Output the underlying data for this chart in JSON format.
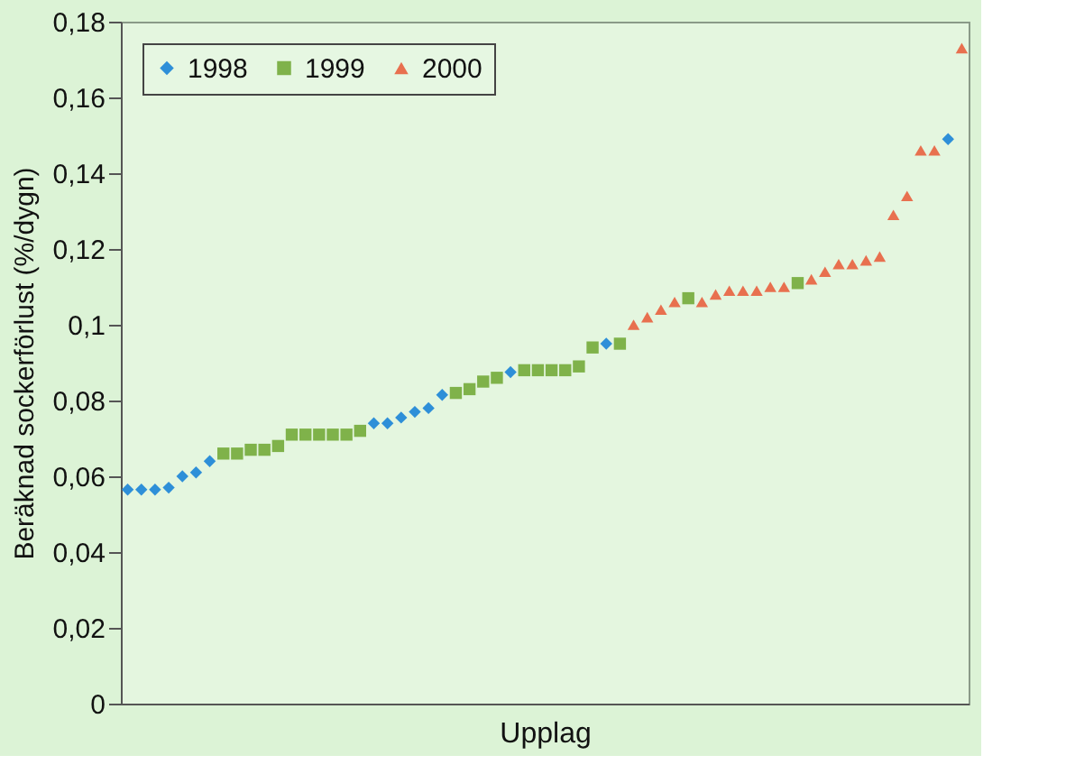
{
  "chart_data": {
    "type": "scatter",
    "xlabel": "Upplag",
    "ylabel": "Beräknad sockerförlust (%/dygn)",
    "categories": [
      null,
      null,
      null,
      null,
      null,
      null,
      null,
      null,
      null,
      null,
      null,
      null,
      null,
      null,
      null,
      null,
      null,
      null,
      null,
      null,
      null,
      null,
      null,
      null,
      null,
      null,
      null,
      null,
      null,
      null,
      null,
      null,
      null,
      null,
      null,
      null,
      null,
      null,
      null,
      null,
      null,
      null,
      null,
      null,
      null,
      null,
      null,
      null,
      null,
      null,
      null,
      null,
      null,
      null,
      null,
      null,
      null,
      null,
      null,
      null,
      null,
      null
    ],
    "series": [
      {
        "name": "1998",
        "color": "#2e8fd8",
        "marker": "diamond",
        "values": [
          0.0565,
          0.0565,
          0.0565,
          0.057,
          0.06,
          0.061,
          0.064,
          null,
          null,
          null,
          null,
          null,
          null,
          null,
          null,
          null,
          null,
          null,
          0.074,
          0.074,
          0.0755,
          0.077,
          0.078,
          0.0815,
          null,
          null,
          null,
          null,
          0.0875,
          null,
          null,
          null,
          null,
          null,
          null,
          0.095,
          null,
          null,
          null,
          null,
          null,
          null,
          null,
          null,
          null,
          null,
          null,
          null,
          null,
          null,
          null,
          null,
          null,
          null,
          null,
          null,
          null,
          null,
          null,
          null,
          0.149,
          null
        ]
      },
      {
        "name": "1999",
        "color": "#7fb24a",
        "marker": "square",
        "values": [
          null,
          null,
          null,
          null,
          null,
          null,
          null,
          0.066,
          0.066,
          0.067,
          0.067,
          0.068,
          0.071,
          0.071,
          0.071,
          0.071,
          0.071,
          0.072,
          null,
          null,
          null,
          null,
          null,
          null,
          0.082,
          0.083,
          0.085,
          0.086,
          null,
          0.088,
          0.088,
          0.088,
          0.088,
          0.089,
          0.094,
          null,
          0.095,
          null,
          null,
          null,
          null,
          0.107,
          null,
          null,
          null,
          null,
          null,
          null,
          null,
          0.111,
          null,
          null,
          null,
          null,
          null,
          null,
          null,
          null,
          null,
          null,
          null,
          null
        ]
      },
      {
        "name": "2000",
        "color": "#e8704f",
        "marker": "triangle",
        "values": [
          null,
          null,
          null,
          null,
          null,
          null,
          null,
          null,
          null,
          null,
          null,
          null,
          null,
          null,
          null,
          null,
          null,
          null,
          null,
          null,
          null,
          null,
          null,
          null,
          null,
          null,
          null,
          null,
          null,
          null,
          null,
          null,
          null,
          null,
          null,
          null,
          null,
          0.1,
          0.102,
          0.104,
          0.106,
          null,
          0.106,
          0.108,
          0.109,
          0.109,
          0.109,
          0.11,
          0.11,
          null,
          0.112,
          0.114,
          0.116,
          0.116,
          0.117,
          0.118,
          0.129,
          0.134,
          0.146,
          0.146,
          null,
          0.173
        ]
      }
    ],
    "ylim": [
      0,
      0.18
    ],
    "yticks": [
      0,
      {
        "value": 0.02,
        "label": "0,02"
      },
      {
        "value": 0.04,
        "label": "0,04"
      },
      {
        "value": 0.06,
        "label": "0,06"
      },
      {
        "value": 0.08,
        "label": "0,08"
      },
      {
        "value": 0.1,
        "label": "0,1"
      },
      {
        "value": 0.12,
        "label": "0,12"
      },
      {
        "value": 0.14,
        "label": "0,14"
      },
      {
        "value": 0.16,
        "label": "0,16"
      },
      {
        "value": 0.18,
        "label": "0,18"
      }
    ],
    "grid": false,
    "legend": "top left"
  }
}
